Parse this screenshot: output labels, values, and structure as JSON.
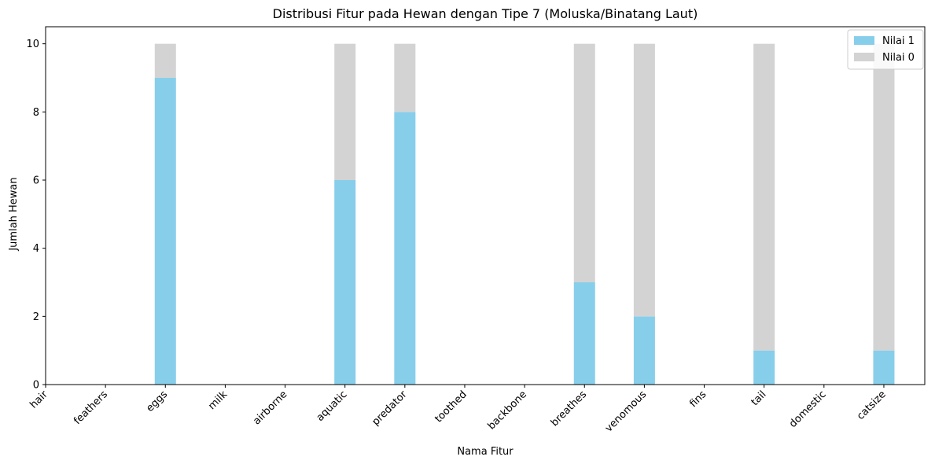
{
  "chart_data": {
    "type": "bar",
    "stacked": true,
    "title": "Distribusi Fitur pada Hewan dengan Tipe 7 (Moluska/Binatang Laut)",
    "xlabel": "Nama Fitur",
    "ylabel": "Jumlah Hewan",
    "ylim": [
      0,
      10.5
    ],
    "yticks": [
      "0",
      "2",
      "4",
      "6",
      "8",
      "10"
    ],
    "grid": false,
    "legend_position": "top-right",
    "categories": [
      "hair",
      "feathers",
      "eggs",
      "milk",
      "airborne",
      "aquatic",
      "predator",
      "toothed",
      "backbone",
      "breathes",
      "venomous",
      "fins",
      "tail",
      "domestic",
      "catsize"
    ],
    "series": [
      {
        "name": "Nilai 1",
        "color": "#87ceeb",
        "values": [
          0,
          0,
          9,
          0,
          0,
          6,
          8,
          0,
          0,
          3,
          2,
          0,
          1,
          0,
          1
        ]
      },
      {
        "name": "Nilai 0",
        "color": "#d3d3d3",
        "values": [
          0,
          0,
          1,
          0,
          0,
          4,
          2,
          0,
          0,
          7,
          8,
          0,
          9,
          0,
          9
        ]
      }
    ]
  }
}
